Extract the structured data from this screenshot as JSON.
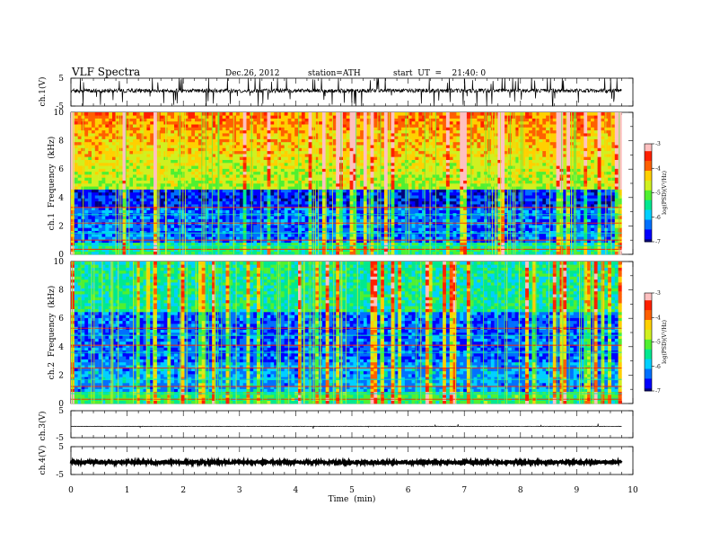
{
  "header": {
    "title": "VLF  Spectra",
    "date": "Dec.26, 2012",
    "station": "station=ATH",
    "start": "start  UT  =    21:40: 0"
  },
  "colors": {
    "waveform": "#000000",
    "colormap": [
      "#00007a",
      "#0000ff",
      "#0070ff",
      "#00d0ff",
      "#00e890",
      "#50f030",
      "#d0f020",
      "#ffd000",
      "#ff6000",
      "#ff2000",
      "#ffc0c0"
    ]
  },
  "chart_data": [
    {
      "type": "line",
      "panel": "ch1",
      "ylabel": "ch.1(V)",
      "ylim": [
        -5,
        5
      ],
      "yticks": [
        "5",
        "-5"
      ],
      "x": [
        0,
        9.8
      ],
      "y_baseline": 0,
      "description_of_signal": "noisy broadband waveform with frequent spikes"
    },
    {
      "type": "heatmap",
      "panel": "ch1-spectrogram",
      "ylabel": "ch.1  Frequency  (kHz)",
      "ylim": [
        0,
        10
      ],
      "yticks": [
        "0",
        "2",
        "4",
        "6",
        "8",
        "10"
      ],
      "xlim": [
        0,
        10
      ],
      "data_end_min": 9.8,
      "colorbar": {
        "label": "log(PSD)(V²/Hz)",
        "range": [
          -7,
          -3
        ],
        "ticks": [
          "-3",
          "-4",
          "-5",
          "-6",
          "-7"
        ]
      }
    },
    {
      "type": "heatmap",
      "panel": "ch2-spectrogram",
      "ylabel": "ch.2  Frequency  (kHz)",
      "ylim": [
        0,
        10
      ],
      "yticks": [
        "0",
        "2",
        "4",
        "6",
        "8",
        "10"
      ],
      "xlim": [
        0,
        10
      ],
      "data_end_min": 9.8,
      "colorbar": {
        "label": "log(PSD)(V²/Hz)",
        "range": [
          -7,
          -3
        ],
        "ticks": [
          "-3",
          "-4",
          "-5",
          "-6",
          "-7"
        ]
      }
    },
    {
      "type": "line",
      "panel": "ch3",
      "ylabel": "ch.3(V)",
      "ylim": [
        -5,
        5
      ],
      "yticks": [
        "5",
        "-5"
      ],
      "y_baseline": 0
    },
    {
      "type": "line",
      "panel": "ch4",
      "ylabel": "ch.4(V)",
      "ylim": [
        -5,
        5
      ],
      "yticks": [
        "5",
        "-5"
      ],
      "y_baseline": 0
    }
  ],
  "xaxis": {
    "label": "Time  (min)",
    "xlim": [
      0,
      10
    ],
    "ticks": [
      "0",
      "1",
      "2",
      "3",
      "4",
      "5",
      "6",
      "7",
      "8",
      "9",
      "10"
    ]
  }
}
